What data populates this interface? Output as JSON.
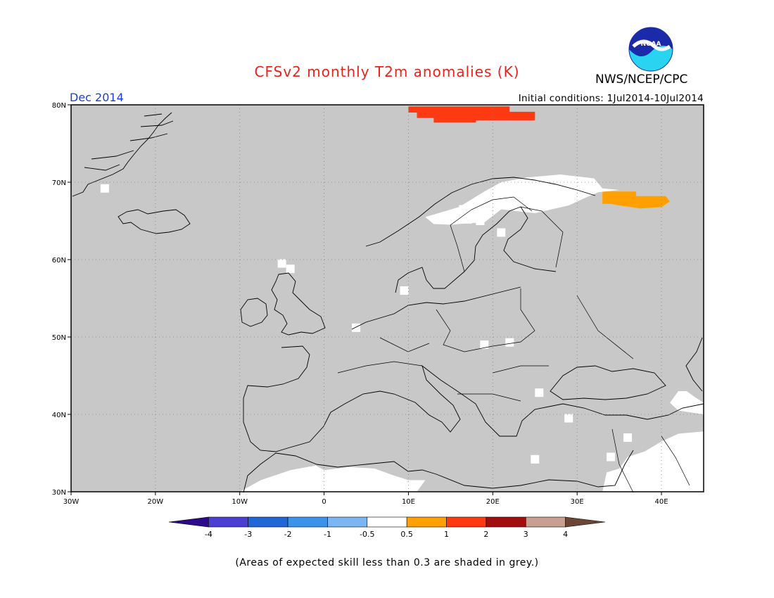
{
  "header": {
    "title": "CFSv2 monthly T2m anomalies (K)",
    "agency": "NWS/NCEP/CPC",
    "month": "Dec 2014",
    "initial_conditions": "Initial conditions: 1Jul2014-10Jul2014",
    "logo_text": "NOAA"
  },
  "map": {
    "lon_range": [
      -30,
      45
    ],
    "lat_range": [
      30,
      80
    ],
    "lat_ticks": [
      {
        "value": 80,
        "label": "80N"
      },
      {
        "value": 70,
        "label": "70N"
      },
      {
        "value": 60,
        "label": "60N"
      },
      {
        "value": 50,
        "label": "50N"
      },
      {
        "value": 40,
        "label": "40N"
      },
      {
        "value": 30,
        "label": "30N"
      }
    ],
    "lon_ticks": [
      {
        "value": -30,
        "label": "30W"
      },
      {
        "value": -20,
        "label": "20W"
      },
      {
        "value": -10,
        "label": "10W"
      },
      {
        "value": 0,
        "label": "0"
      },
      {
        "value": 10,
        "label": "10E"
      },
      {
        "value": 20,
        "label": "20E"
      },
      {
        "value": 30,
        "label": "30E"
      },
      {
        "value": 40,
        "label": "40E"
      }
    ],
    "background_color": "#c8c8c8",
    "gridlines": true
  },
  "colorbar": {
    "labels": [
      "-4",
      "-3",
      "-2",
      "-1",
      "-0.5",
      "0.5",
      "1",
      "2",
      "3",
      "4"
    ],
    "colors": [
      "#2d0a8a",
      "#4a3fd0",
      "#1f66d6",
      "#3c93ec",
      "#7ab7f2",
      "#ffffff",
      "#ffa000",
      "#ff3a12",
      "#a20d0d",
      "#c8a090",
      "#6b4535"
    ]
  },
  "anomaly_regions": [
    {
      "name": "svalbard-anomaly",
      "color": "#ff3a12",
      "polygon": [
        [
          10,
          79.8
        ],
        [
          22,
          79.8
        ],
        [
          22,
          79.1
        ],
        [
          25,
          79.1
        ],
        [
          25,
          78.0
        ],
        [
          18,
          78.0
        ],
        [
          18,
          77.7
        ],
        [
          13,
          77.7
        ],
        [
          13,
          78.3
        ],
        [
          11,
          78.3
        ],
        [
          11,
          79.0
        ],
        [
          10,
          79.0
        ]
      ]
    },
    {
      "name": "kola-anomaly",
      "color": "#ffa000",
      "polygon": [
        [
          33,
          68.8
        ],
        [
          37,
          68.8
        ],
        [
          37,
          68.2
        ],
        [
          40.5,
          68.2
        ],
        [
          41,
          67.5
        ],
        [
          40,
          66.8
        ],
        [
          37.5,
          66.6
        ],
        [
          35,
          67.0
        ],
        [
          34,
          67.2
        ],
        [
          33,
          67.2
        ]
      ]
    },
    {
      "name": "north-scandinavia-white",
      "color": "#ffffff",
      "polygon": [
        [
          12,
          65.5
        ],
        [
          16,
          66.8
        ],
        [
          19,
          68.8
        ],
        [
          21,
          70.0
        ],
        [
          24,
          70.6
        ],
        [
          28,
          71.0
        ],
        [
          32,
          70.5
        ],
        [
          33,
          69.2
        ],
        [
          35,
          69.0
        ],
        [
          32.5,
          68.7
        ],
        [
          31,
          68.0
        ],
        [
          29,
          67.0
        ],
        [
          27,
          66.5
        ],
        [
          25,
          66.0
        ],
        [
          21,
          66.5
        ],
        [
          19,
          64.8
        ],
        [
          17,
          64.7
        ],
        [
          15,
          64.5
        ],
        [
          13,
          64.6
        ]
      ]
    },
    {
      "name": "north-africa-white",
      "color": "#ffffff",
      "polygon": [
        [
          -10,
          30
        ],
        [
          -7.5,
          31.5
        ],
        [
          -4,
          32.8
        ],
        [
          -1,
          33.4
        ],
        [
          0,
          32.8
        ],
        [
          3,
          33.2
        ],
        [
          6,
          33.0
        ],
        [
          8,
          32.2
        ],
        [
          10,
          31.5
        ],
        [
          12,
          31.5
        ],
        [
          11,
          30
        ]
      ]
    },
    {
      "name": "morocco-white",
      "color": "#ffffff",
      "polygon": [
        [
          -8,
          30
        ],
        [
          -6,
          31.3
        ],
        [
          -4,
          30.8
        ],
        [
          -3,
          30
        ]
      ]
    },
    {
      "name": "middle-east-white",
      "color": "#ffffff",
      "polygon": [
        [
          33,
          30
        ],
        [
          33.5,
          32.5
        ],
        [
          35,
          33.0
        ],
        [
          36,
          34.5
        ],
        [
          38,
          35.2
        ],
        [
          40,
          36.5
        ],
        [
          42,
          37.5
        ],
        [
          45,
          37.8
        ],
        [
          45,
          30
        ]
      ]
    },
    {
      "name": "caucasus-white",
      "color": "#ffffff",
      "polygon": [
        [
          41,
          41.5
        ],
        [
          42,
          43.0
        ],
        [
          43,
          43.0
        ],
        [
          44,
          42.2
        ],
        [
          45,
          41.5
        ],
        [
          45,
          40
        ],
        [
          42,
          40.5
        ]
      ]
    }
  ],
  "white_cells": [
    [
      -26,
      69.2
    ],
    [
      16.5,
      66.5
    ],
    [
      21.5,
      68.0
    ],
    [
      17,
      65.2
    ],
    [
      18.5,
      65.0
    ],
    [
      21,
      63.5
    ],
    [
      -5,
      59.5
    ],
    [
      -4,
      58.8
    ],
    [
      9.5,
      56.0
    ],
    [
      3.8,
      51.2
    ],
    [
      19,
      49.0
    ],
    [
      22,
      49.3
    ],
    [
      25.5,
      42.8
    ],
    [
      29,
      39.5
    ],
    [
      25,
      34.2
    ],
    [
      34,
      34.5
    ],
    [
      36,
      37.0
    ]
  ],
  "footer": {
    "note": "(Areas of expected skill less than 0.3 are shaded in grey.)"
  }
}
